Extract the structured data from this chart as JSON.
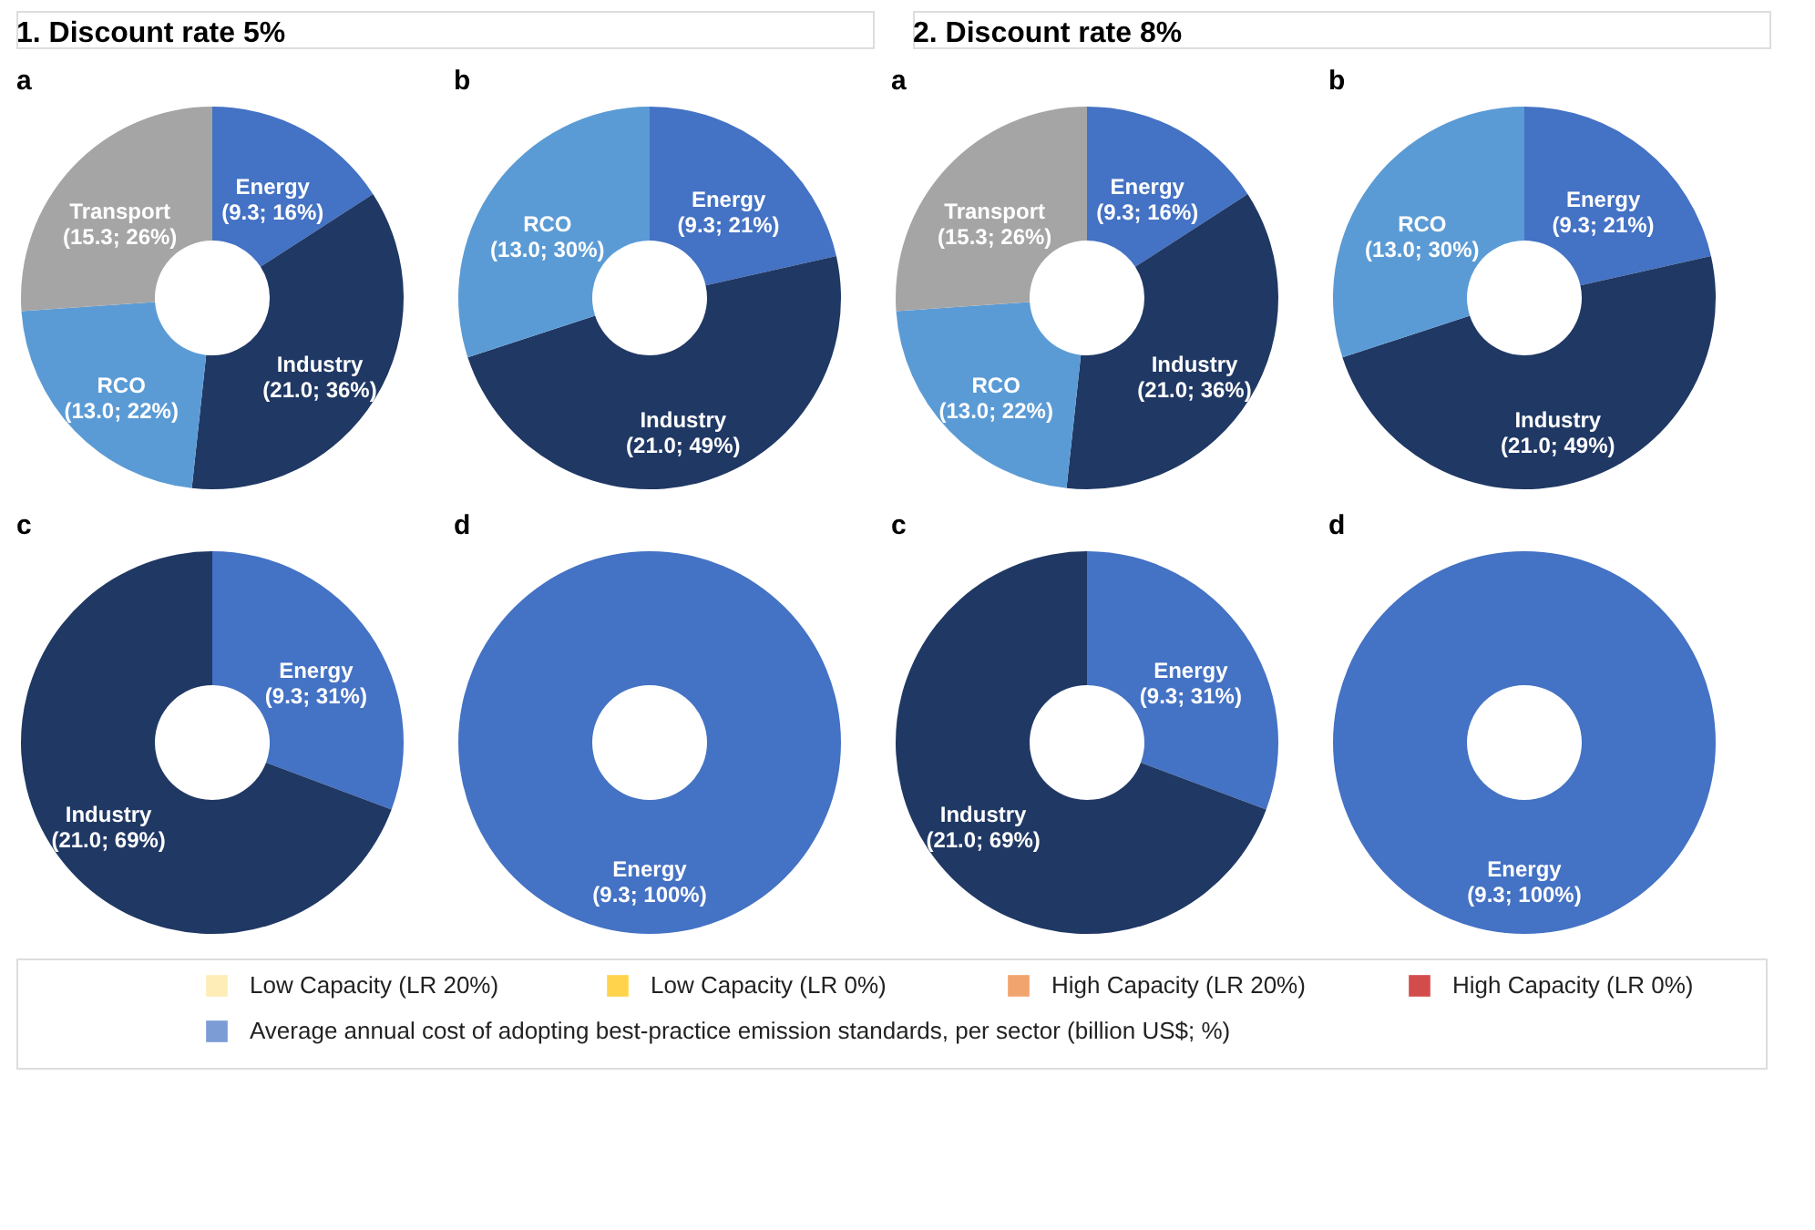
{
  "chart_data": [
    {
      "type": "other",
      "title": "1. Discount rate 5%"
    },
    {
      "type": "other",
      "title": "2. Discount rate 8%"
    },
    {
      "type": "donut",
      "title": "a",
      "categories": [
        "Energy",
        "Industry",
        "RCO",
        "Transport"
      ],
      "values": [
        9.3,
        21.0,
        13.0,
        15.3
      ],
      "value_labels": [
        "(9.3; 16%)",
        "(21.0; 36%)",
        "(13.0; 22%)",
        "(15.3; 26%)"
      ],
      "colors": [
        "#4472c4",
        "#203864",
        "#5b9bd5",
        "#a5a5a5"
      ]
    },
    {
      "type": "donut",
      "title": "b",
      "categories": [
        "Energy",
        "Industry",
        "RCO"
      ],
      "values": [
        9.3,
        21.0,
        13.0
      ],
      "value_labels": [
        "(9.3; 21%)",
        "(21.0; 49%)",
        "(13.0; 30%)"
      ],
      "colors": [
        "#4472c4",
        "#203864",
        "#5b9bd5"
      ]
    },
    {
      "type": "donut",
      "title": "a",
      "categories": [
        "Energy",
        "Industry",
        "RCO",
        "Transport"
      ],
      "values": [
        9.3,
        21.0,
        13.0,
        15.3
      ],
      "value_labels": [
        "(9.3; 16%)",
        "(21.0; 36%)",
        "(13.0; 22%)",
        "(15.3; 26%)"
      ],
      "colors": [
        "#4472c4",
        "#203864",
        "#5b9bd5",
        "#a5a5a5"
      ]
    },
    {
      "type": "donut",
      "title": "b",
      "categories": [
        "Energy",
        "Industry",
        "RCO"
      ],
      "values": [
        9.3,
        21.0,
        13.0
      ],
      "value_labels": [
        "(9.3; 21%)",
        "(21.0; 49%)",
        "(13.0; 30%)"
      ],
      "colors": [
        "#4472c4",
        "#203864",
        "#5b9bd5"
      ]
    },
    {
      "type": "donut",
      "title": "c",
      "categories": [
        "Energy",
        "Industry"
      ],
      "values": [
        9.3,
        21.0
      ],
      "value_labels": [
        "(9.3; 31%)",
        "(21.0; 69%)"
      ],
      "colors": [
        "#4472c4",
        "#203864"
      ]
    },
    {
      "type": "donut",
      "title": "d",
      "categories": [
        "Energy"
      ],
      "values": [
        9.3
      ],
      "value_labels": [
        "(9.3; 100%)"
      ],
      "colors": [
        "#4472c4"
      ]
    },
    {
      "type": "donut",
      "title": "c",
      "categories": [
        "Energy",
        "Industry"
      ],
      "values": [
        9.3,
        21.0
      ],
      "value_labels": [
        "(9.3; 31%)",
        "(21.0; 69%)"
      ],
      "colors": [
        "#4472c4",
        "#203864"
      ]
    },
    {
      "type": "donut",
      "title": "d",
      "categories": [
        "Energy"
      ],
      "values": [
        9.3
      ],
      "value_labels": [
        "(9.3; 100%)"
      ],
      "colors": [
        "#4472c4"
      ]
    },
    {
      "type": "other",
      "series": [
        {
          "name": "Low Capacity (LR 20%)",
          "color": "#ffe699"
        },
        {
          "name": "Low Capacity (LR 0%)",
          "color": "#ffc000"
        },
        {
          "name": "High Capacity (LR 20%)",
          "color": "#ed7d31"
        },
        {
          "name": "High Capacity (LR 0%)",
          "color": "#c00000"
        },
        {
          "name": "Average annual cost of adopting best-practice emission standards, per sector (billion US$; %)",
          "color": "#4472c4"
        }
      ]
    }
  ]
}
